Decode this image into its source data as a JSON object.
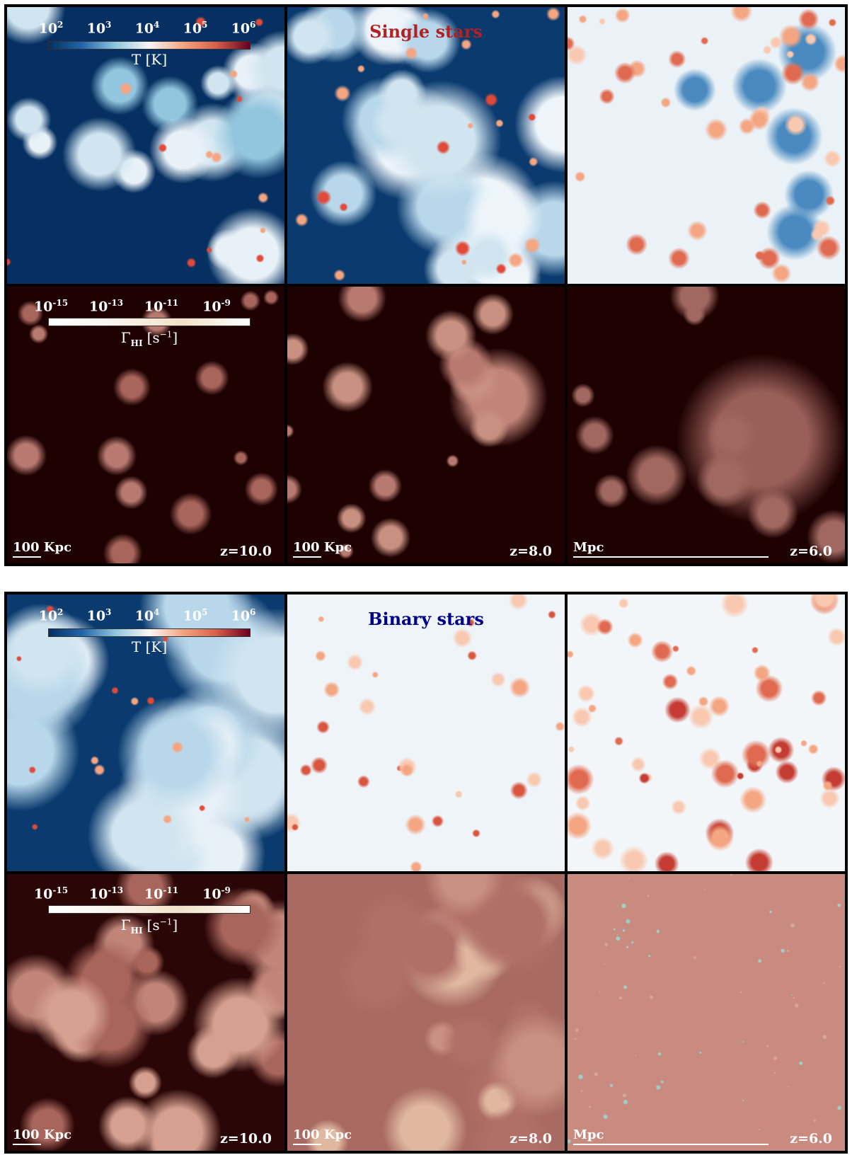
{
  "blocks": [
    {
      "title": "Single stars",
      "temperature_colorbar": {
        "ticks": [
          {
            "base": "10",
            "exponent": "2"
          },
          {
            "base": "10",
            "exponent": "3"
          },
          {
            "base": "10",
            "exponent": "4"
          },
          {
            "base": "10",
            "exponent": "5"
          },
          {
            "base": "10",
            "exponent": "6"
          }
        ],
        "label": "T [K]"
      },
      "rate_colorbar": {
        "ticks": [
          {
            "base": "10",
            "exponent": "-15"
          },
          {
            "base": "10",
            "exponent": "-13"
          },
          {
            "base": "10",
            "exponent": "-11"
          },
          {
            "base": "10",
            "exponent": "-9"
          }
        ],
        "label": "Γ",
        "label_subscript": "HI",
        "unit": "[s",
        "unit_exponent": "−1",
        "unit_close": "]"
      },
      "scale_bars": [
        "100 Kpc",
        "100 Kpc",
        "Mpc"
      ],
      "redshifts": [
        "z=10.0",
        "z=8.0",
        "z=6.0"
      ]
    },
    {
      "title": "Binary stars",
      "temperature_colorbar": {
        "ticks": [
          {
            "base": "10",
            "exponent": "2"
          },
          {
            "base": "10",
            "exponent": "3"
          },
          {
            "base": "10",
            "exponent": "4"
          },
          {
            "base": "10",
            "exponent": "5"
          },
          {
            "base": "10",
            "exponent": "6"
          }
        ],
        "label": "T [K]"
      },
      "rate_colorbar": {
        "ticks": [
          {
            "base": "10",
            "exponent": "-15"
          },
          {
            "base": "10",
            "exponent": "-13"
          },
          {
            "base": "10",
            "exponent": "-11"
          },
          {
            "base": "10",
            "exponent": "-9"
          }
        ],
        "label": "Γ",
        "label_subscript": "HI",
        "unit": "[s",
        "unit_exponent": "−1",
        "unit_close": "]"
      },
      "scale_bars": [
        "100 Kpc",
        "100 Kpc",
        "Mpc"
      ],
      "redshifts": [
        "z=10.0",
        "z=8.0",
        "z=6.0"
      ]
    }
  ]
}
